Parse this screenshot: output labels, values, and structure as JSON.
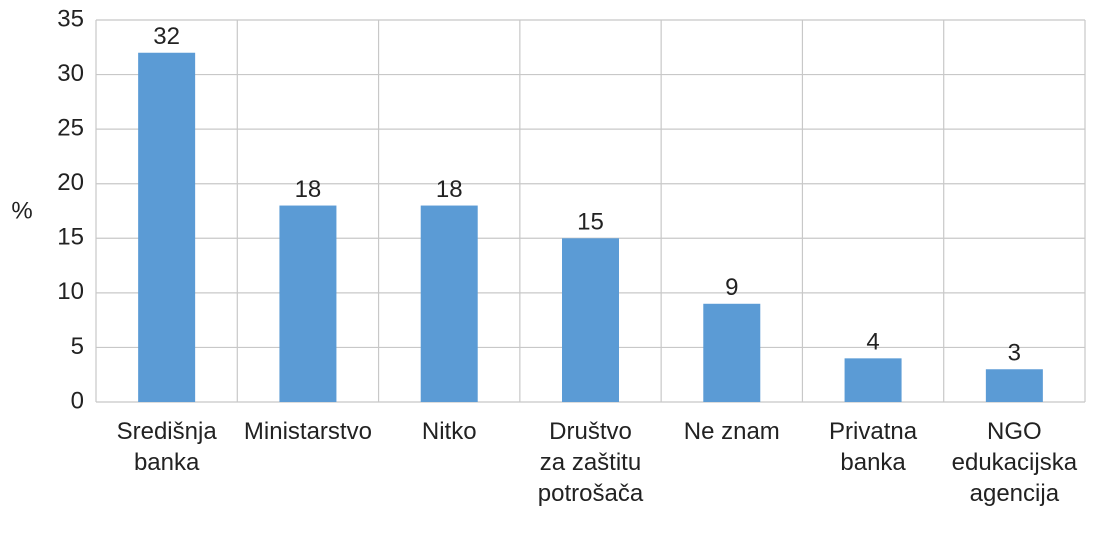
{
  "chart_data": {
    "type": "bar",
    "y_label": "%",
    "categories": [
      "Središnja\nbanka",
      "Ministarstvo",
      "Nitko",
      "Društvo\nza zaštitu\npotrošača",
      "Ne znam",
      "Privatna\nbanka",
      "NGO\nedukacijska\nagencija"
    ],
    "values": [
      32,
      18,
      18,
      15,
      9,
      4,
      3
    ],
    "color": "#5b9bd5",
    "ylim": [
      0,
      35
    ],
    "yticks": [
      0,
      5,
      10,
      15,
      20,
      25,
      30,
      35
    ],
    "grid": true
  }
}
